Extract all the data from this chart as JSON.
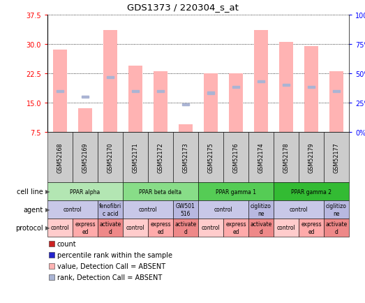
{
  "title": "GDS1373 / 220304_s_at",
  "samples": [
    "GSM52168",
    "GSM52169",
    "GSM52170",
    "GSM52171",
    "GSM52172",
    "GSM52173",
    "GSM52175",
    "GSM52176",
    "GSM52174",
    "GSM52178",
    "GSM52179",
    "GSM52177"
  ],
  "bar_heights": [
    28.5,
    13.5,
    33.5,
    24.5,
    23.0,
    9.5,
    22.5,
    22.5,
    33.5,
    30.5,
    29.5,
    23.0
  ],
  "rank_values": [
    18.0,
    16.5,
    21.5,
    18.0,
    18.0,
    14.5,
    17.5,
    19.0,
    20.5,
    19.5,
    19.0,
    18.0
  ],
  "bar_color": "#ffb3b3",
  "rank_color": "#aab4d4",
  "ylim_left": [
    7.5,
    37.5
  ],
  "yticks_left": [
    7.5,
    15.0,
    22.5,
    30.0,
    37.5
  ],
  "ytick_labels_right": [
    "0%",
    "25%",
    "50%",
    "75%",
    "100%"
  ],
  "yticks_right": [
    0,
    25,
    50,
    75,
    100
  ],
  "cell_lines": [
    {
      "label": "PPAR alpha",
      "start": 0,
      "end": 3,
      "color": "#b3e6b3"
    },
    {
      "label": "PPAR beta delta",
      "start": 3,
      "end": 6,
      "color": "#88dd88"
    },
    {
      "label": "PPAR gamma 1",
      "start": 6,
      "end": 9,
      "color": "#55cc55"
    },
    {
      "label": "PPAR gamma 2",
      "start": 9,
      "end": 12,
      "color": "#33bb33"
    }
  ],
  "agents": [
    {
      "label": "control",
      "start": 0,
      "end": 2,
      "color": "#c8c8e8"
    },
    {
      "label": "fenofibri\nc acid",
      "start": 2,
      "end": 3,
      "color": "#b8b8e0"
    },
    {
      "label": "control",
      "start": 3,
      "end": 5,
      "color": "#c8c8e8"
    },
    {
      "label": "GW501\n516",
      "start": 5,
      "end": 6,
      "color": "#b8b8e0"
    },
    {
      "label": "control",
      "start": 6,
      "end": 8,
      "color": "#c8c8e8"
    },
    {
      "label": "ciglitizo\nne",
      "start": 8,
      "end": 9,
      "color": "#b8b8e0"
    },
    {
      "label": "control",
      "start": 9,
      "end": 11,
      "color": "#c8c8e8"
    },
    {
      "label": "ciglitizo\nne",
      "start": 11,
      "end": 12,
      "color": "#b8b8e0"
    }
  ],
  "protocols": [
    {
      "label": "control",
      "start": 0,
      "end": 1,
      "color": "#ffcccc"
    },
    {
      "label": "express\ned",
      "start": 1,
      "end": 2,
      "color": "#ffaaaa"
    },
    {
      "label": "activate\nd",
      "start": 2,
      "end": 3,
      "color": "#ee8888"
    },
    {
      "label": "control",
      "start": 3,
      "end": 4,
      "color": "#ffcccc"
    },
    {
      "label": "express\ned",
      "start": 4,
      "end": 5,
      "color": "#ffaaaa"
    },
    {
      "label": "activate\nd",
      "start": 5,
      "end": 6,
      "color": "#ee8888"
    },
    {
      "label": "control",
      "start": 6,
      "end": 7,
      "color": "#ffcccc"
    },
    {
      "label": "express\ned",
      "start": 7,
      "end": 8,
      "color": "#ffaaaa"
    },
    {
      "label": "activate\nd",
      "start": 8,
      "end": 9,
      "color": "#ee8888"
    },
    {
      "label": "control",
      "start": 9,
      "end": 10,
      "color": "#ffcccc"
    },
    {
      "label": "express\ned",
      "start": 10,
      "end": 11,
      "color": "#ffaaaa"
    },
    {
      "label": "activate\nd",
      "start": 11,
      "end": 12,
      "color": "#ee8888"
    }
  ],
  "legend_items": [
    {
      "color": "#cc2222",
      "label": "count"
    },
    {
      "color": "#2222cc",
      "label": "percentile rank within the sample"
    },
    {
      "color": "#ffb3b3",
      "label": "value, Detection Call = ABSENT"
    },
    {
      "color": "#aab4d4",
      "label": "rank, Detection Call = ABSENT"
    }
  ],
  "sample_box_color": "#cccccc",
  "bg_color": "#ffffff"
}
